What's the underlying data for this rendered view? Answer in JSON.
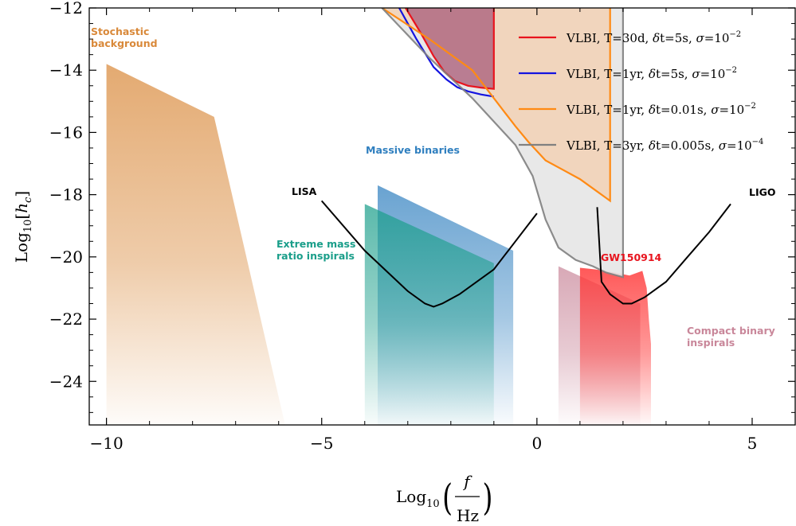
{
  "chart_data": {
    "type": "area",
    "xlabel": "Log10(f/Hz)",
    "ylabel": "Log10[hc]",
    "xlim": [
      -10.4,
      6.0
    ],
    "ylim": [
      -25.4,
      -12.0
    ],
    "x_ticks": [
      -10,
      -5,
      0,
      5
    ],
    "y_ticks": [
      -12,
      -14,
      -16,
      -18,
      -20,
      -22,
      -24
    ],
    "x_tick_labels": [
      "−10",
      "−5",
      "0",
      "5"
    ],
    "y_tick_labels": [
      "−12",
      "−14",
      "−16",
      "−18",
      "−20",
      "−22",
      "−24"
    ],
    "legend_position": "top-right",
    "regions": [
      {
        "name": "Stochastic background",
        "label_lines": [
          "Stochastic",
          "background"
        ],
        "color": "#D9893A",
        "polygon": [
          [
            -10.0,
            -13.8
          ],
          [
            -7.5,
            -15.5
          ],
          [
            -5.85,
            -25.4
          ],
          [
            -10.0,
            -25.4
          ]
        ]
      },
      {
        "name": "Massive binaries",
        "label_lines": [
          "Massive binaries"
        ],
        "color": "#2F7FBF",
        "polygon": [
          [
            -3.7,
            -17.7
          ],
          [
            -0.55,
            -19.8
          ],
          [
            -0.55,
            -25.4
          ],
          [
            -3.7,
            -25.4
          ]
        ]
      },
      {
        "name": "Extreme mass ratio inspirals",
        "label_lines": [
          "Extreme mass",
          "ratio inspirals"
        ],
        "color": "#1A9E8A",
        "polygon": [
          [
            -4.0,
            -18.3
          ],
          [
            -1.0,
            -20.2
          ],
          [
            -1.0,
            -25.4
          ],
          [
            -4.0,
            -25.4
          ]
        ]
      },
      {
        "name": "Compact binary inspirals",
        "label_lines": [
          "Compact binary",
          "inspirals"
        ],
        "color": "#C9879A",
        "polygon": [
          [
            0.5,
            -20.3
          ],
          [
            2.4,
            -21.5
          ],
          [
            2.4,
            -25.4
          ],
          [
            0.5,
            -25.4
          ]
        ]
      },
      {
        "name": "GW150914",
        "label_lines": [
          "GW150914"
        ],
        "color": "#FF3B3B",
        "polygon": [
          [
            1.0,
            -20.35
          ],
          [
            1.35,
            -20.4
          ],
          [
            1.8,
            -20.5
          ],
          [
            2.15,
            -20.6
          ],
          [
            2.45,
            -20.45
          ],
          [
            2.55,
            -21.0
          ],
          [
            2.6,
            -22.0
          ],
          [
            2.65,
            -22.8
          ],
          [
            2.65,
            -25.4
          ],
          [
            1.0,
            -25.4
          ]
        ]
      }
    ],
    "sensitivity_curves": [
      {
        "name": "LISA",
        "color": "#000000",
        "x": [
          -5.0,
          -4.0,
          -3.0,
          -2.6,
          -2.4,
          -2.2,
          -1.8,
          -1.0,
          0.0
        ],
        "y": [
          -18.2,
          -19.8,
          -21.1,
          -21.5,
          -21.6,
          -21.5,
          -21.2,
          -20.4,
          -18.6
        ]
      },
      {
        "name": "LIGO",
        "color": "#000000",
        "x": [
          1.4,
          1.5,
          1.7,
          2.0,
          2.2,
          2.5,
          3.0,
          3.5,
          4.0,
          4.5
        ],
        "y": [
          -18.4,
          -20.8,
          -21.2,
          -21.5,
          -21.5,
          -21.3,
          -20.8,
          -20.0,
          -19.2,
          -18.3
        ]
      }
    ],
    "series": [
      {
        "name": "VLBI, T=30d, δt=5s, σ=10^−2",
        "label_parts": [
          "VLBI, T=30d, ",
          "δ",
          "t=5s, ",
          "σ",
          "=10",
          "−2"
        ],
        "color": "#E8141E",
        "x": [
          -3.05,
          -2.7,
          -2.4,
          -2.15,
          -1.9,
          -1.6,
          -1.3,
          -1.0,
          -1.0
        ],
        "y": [
          -12.0,
          -12.8,
          -13.55,
          -14.05,
          -14.35,
          -14.5,
          -14.56,
          -14.6,
          -12.0
        ],
        "fill": "#B06A82"
      },
      {
        "name": "VLBI, T=1yr, δt=5s, σ=10^−2",
        "label_parts": [
          "VLBI, T=1yr, ",
          "δ",
          "t=5s, ",
          "σ",
          "=10",
          "−2"
        ],
        "color": "#1414E0",
        "x": [
          -3.2,
          -2.8,
          -2.4,
          -2.1,
          -1.85,
          -1.6,
          -1.3,
          -1.0
        ],
        "y": [
          -12.0,
          -13.0,
          -13.9,
          -14.3,
          -14.55,
          -14.68,
          -14.78,
          -14.85
        ]
      },
      {
        "name": "VLBI, T=1yr, δt=0.01s, σ=10^−2",
        "label_parts": [
          "VLBI, T=1yr, ",
          "δ",
          "t=0.01s, ",
          "σ",
          "=10",
          "−2"
        ],
        "color": "#FF8A14",
        "x": [
          -3.6,
          -2.5,
          -1.5,
          -1.0,
          -0.5,
          -0.2,
          0.2,
          0.6,
          1.0,
          1.4,
          1.7,
          1.7
        ],
        "y": [
          -12.0,
          -13.0,
          -14.0,
          -14.9,
          -15.8,
          -16.3,
          -16.9,
          -17.2,
          -17.5,
          -17.9,
          -18.2,
          -12.0
        ],
        "fill": "#F2D3B8"
      },
      {
        "name": "VLBI, T=3yr, δt=0.005s, σ=10^−4",
        "label_parts": [
          "VLBI, T=3yr, ",
          "δ",
          "t=0.005s, ",
          "σ",
          "=10",
          "−4"
        ],
        "color": "#808080",
        "x": [
          -3.6,
          -2.5,
          -1.5,
          -0.5,
          -0.1,
          0.2,
          0.5,
          0.9,
          1.3,
          1.6,
          2.0,
          2.0
        ],
        "y": [
          -12.0,
          -13.6,
          -14.9,
          -16.4,
          -17.4,
          -18.8,
          -19.7,
          -20.1,
          -20.3,
          -20.5,
          -20.65,
          -12.0
        ],
        "fill": "#E6E6E6"
      }
    ]
  },
  "labels": {
    "stochastic_line1": "Stochastic",
    "stochastic_line2": "background",
    "massive": "Massive binaries",
    "emri_line1": "Extreme mass",
    "emri_line2": "ratio inspirals",
    "compact_line1": "Compact binary",
    "compact_line2": "inspirals",
    "gw150914": "GW150914",
    "lisa": "LISA",
    "ligo": "LIGO"
  },
  "axes": {
    "xlabel_prefix": "Log",
    "xlabel_sub": "10",
    "xlabel_num": "f",
    "xlabel_den": "Hz",
    "ylabel_prefix": "Log",
    "ylabel_sub": "10",
    "ylabel_bracket_open": "[",
    "ylabel_var": "h",
    "ylabel_var_sub": "c",
    "ylabel_bracket_close": "]"
  }
}
